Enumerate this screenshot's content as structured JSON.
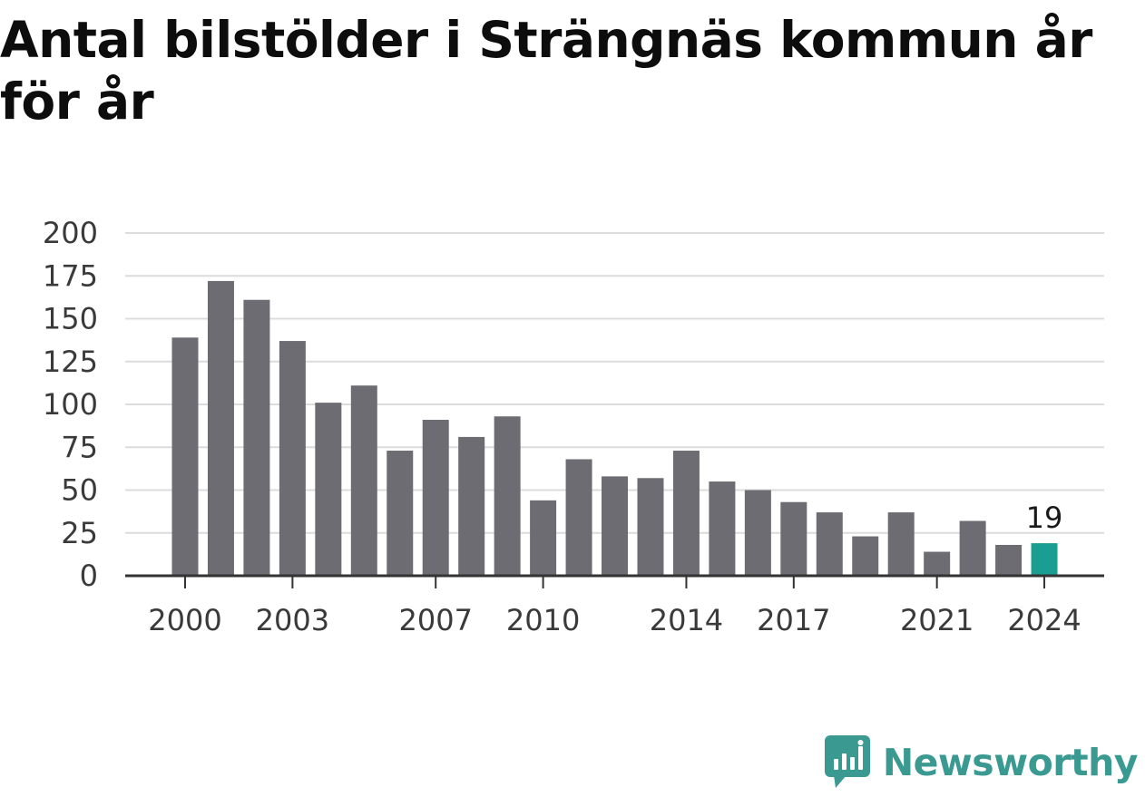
{
  "chart_data": {
    "type": "bar",
    "title": "Antal bilstölder i Strängnäs kommun år för år",
    "xlabel": "",
    "ylabel": "",
    "categories": [
      "2000",
      "2001",
      "2002",
      "2003",
      "2004",
      "2005",
      "2006",
      "2007",
      "2008",
      "2009",
      "2010",
      "2011",
      "2012",
      "2013",
      "2014",
      "2015",
      "2016",
      "2017",
      "2018",
      "2019",
      "2020",
      "2021",
      "2022",
      "2023",
      "2024"
    ],
    "values": [
      139,
      172,
      161,
      137,
      101,
      111,
      73,
      91,
      81,
      93,
      44,
      68,
      58,
      57,
      73,
      55,
      50,
      43,
      37,
      23,
      37,
      14,
      32,
      18,
      19
    ],
    "x_tick_labels": [
      "2000",
      "2003",
      "2007",
      "2010",
      "2014",
      "2017",
      "2021",
      "2024"
    ],
    "y_ticks": [
      0,
      25,
      50,
      75,
      100,
      125,
      150,
      175,
      200
    ],
    "ylim": [
      0,
      200
    ],
    "grid": true,
    "highlight": {
      "category": "2024",
      "label": "19"
    },
    "colors": {
      "bar": "#6d6c72",
      "highlight": "#1a9e91",
      "grid": "#dcdcdc",
      "axis": "#333333"
    }
  },
  "brand": {
    "name": "Newsworthy",
    "icon": "newsworthy-logo-icon",
    "color": "#3a9a91"
  }
}
